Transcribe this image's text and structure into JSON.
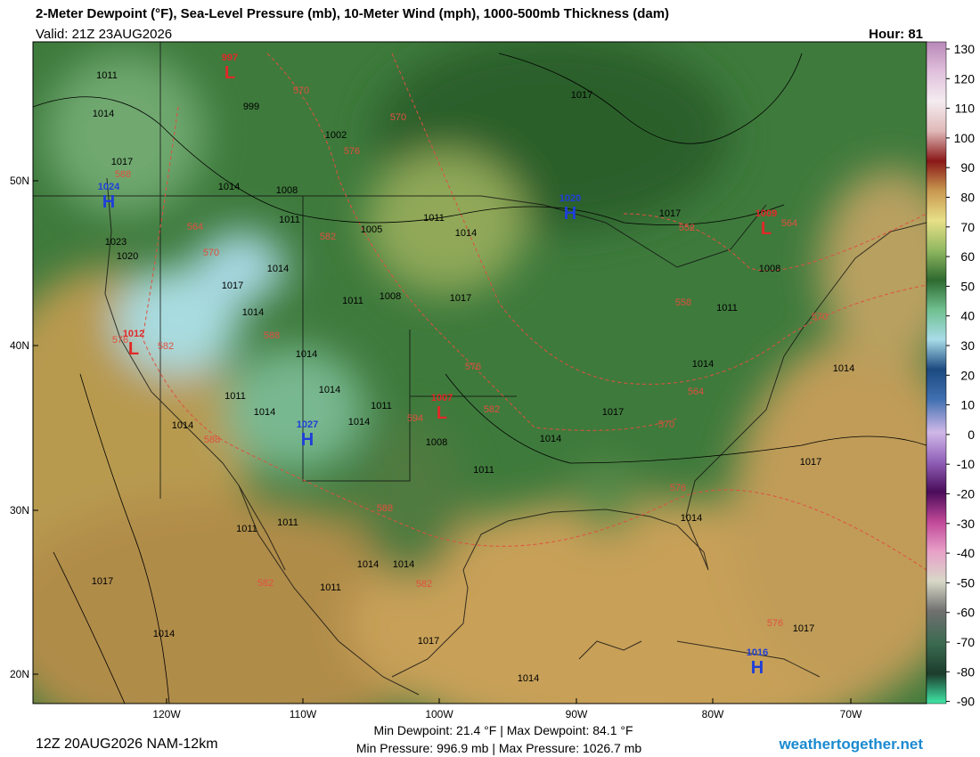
{
  "header": {
    "title": "2-Meter Dewpoint (°F), Sea-Level Pressure (mb), 10-Meter Wind (mph), 1000-500mb Thickness (dam)",
    "valid": "Valid: 21Z 23AUG2026",
    "hour": "Hour: 81"
  },
  "colorbar": {
    "ticks": [
      130,
      120,
      110,
      100,
      90,
      80,
      70,
      60,
      50,
      40,
      30,
      20,
      10,
      0,
      -10,
      -20,
      -30,
      -40,
      -50,
      -60,
      -70,
      -80,
      -90
    ]
  },
  "axes": {
    "lat_labels": [
      "50N",
      "40N",
      "30N",
      "20N"
    ],
    "lon_labels": [
      "120W",
      "110W",
      "100W",
      "90W",
      "80W",
      "70W"
    ]
  },
  "pressure_centers": [
    {
      "kind": "L",
      "value": 997
    },
    {
      "kind": "H",
      "value": 1024
    },
    {
      "kind": "H",
      "value": 1020
    },
    {
      "kind": "L",
      "value": 1009
    },
    {
      "kind": "L",
      "value": 1012
    },
    {
      "kind": "L",
      "value": 1007
    },
    {
      "kind": "H",
      "value": 1027
    },
    {
      "kind": "H",
      "value": 1016
    }
  ],
  "isobar_labels": [
    1011,
    1014,
    999,
    1002,
    1017,
    1014,
    1008,
    1011,
    1005,
    1011,
    1014,
    1017,
    1017,
    1023,
    1020,
    1014,
    1017,
    1008,
    1011,
    1017,
    1014,
    1008,
    1011,
    1014,
    1014,
    1011,
    1014,
    1011,
    1014,
    1014,
    1014,
    1014,
    1017,
    1014,
    1008,
    1011,
    1017,
    1014,
    1011,
    1011,
    1014,
    1014,
    1011,
    1017,
    1014,
    1017,
    1017,
    1014
  ],
  "thickness_labels": [
    570,
    570,
    576,
    588,
    564,
    582,
    570,
    552,
    564,
    558,
    570,
    576,
    582,
    588,
    576,
    564,
    570,
    582,
    594,
    588,
    576,
    588,
    582,
    582,
    576
  ],
  "footer": {
    "run": "12Z 20AUG2026 NAM-12km",
    "dewpoint": "Min Dewpoint:  21.4 °F | Max Dewpoint:  84.1 °F",
    "pressure": "Min Pressure:  996.9 mb | Max Pressure:  1026.7 mb",
    "site": "weathertogether.net"
  }
}
